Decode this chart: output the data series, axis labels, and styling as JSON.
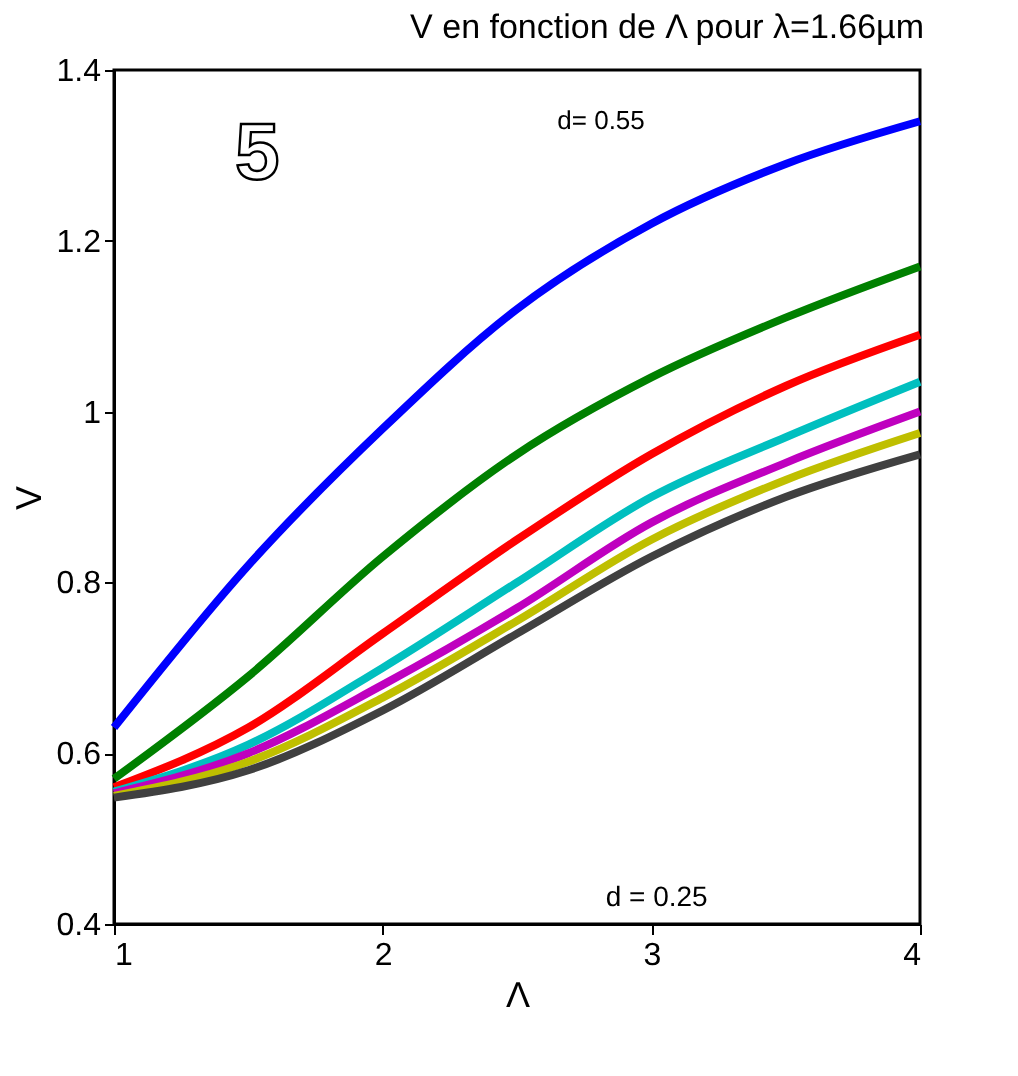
{
  "chart_data": {
    "type": "line",
    "title": "V en fonction de Λ pour λ=1.66µm",
    "xlabel": "Λ",
    "ylabel": "V",
    "annotations": [
      "5",
      "d= 0.55",
      "d = 0.25"
    ],
    "x": [
      1,
      1.5,
      2,
      2.5,
      3,
      3.5,
      4
    ],
    "series": [
      {
        "color": "#0000ff",
        "values": [
          0.63,
          0.82,
          0.98,
          1.12,
          1.22,
          1.29,
          1.34
        ]
      },
      {
        "color": "#008000",
        "values": [
          0.57,
          0.69,
          0.83,
          0.95,
          1.04,
          1.11,
          1.17
        ]
      },
      {
        "color": "#ff0000",
        "values": [
          0.56,
          0.63,
          0.74,
          0.85,
          0.95,
          1.03,
          1.09
        ]
      },
      {
        "color": "#00bfbf",
        "values": [
          0.555,
          0.61,
          0.7,
          0.8,
          0.9,
          0.97,
          1.035
        ]
      },
      {
        "color": "#bf00bf",
        "values": [
          0.553,
          0.6,
          0.68,
          0.77,
          0.87,
          0.94,
          1.0
        ]
      },
      {
        "color": "#bfbf00",
        "values": [
          0.55,
          0.59,
          0.665,
          0.755,
          0.85,
          0.92,
          0.975
        ]
      },
      {
        "color": "#404040",
        "values": [
          0.548,
          0.58,
          0.65,
          0.74,
          0.83,
          0.9,
          0.95
        ]
      }
    ],
    "xlim": [
      1,
      4
    ],
    "xticks": [
      1,
      2,
      3,
      4
    ],
    "ylim": [
      0.4,
      1.4
    ],
    "yticks": [
      0.4,
      0.6,
      0.8,
      1,
      1.2,
      1.4
    ],
    "grid": false,
    "legend": false,
    "marker": "none",
    "line_style": "solid"
  }
}
